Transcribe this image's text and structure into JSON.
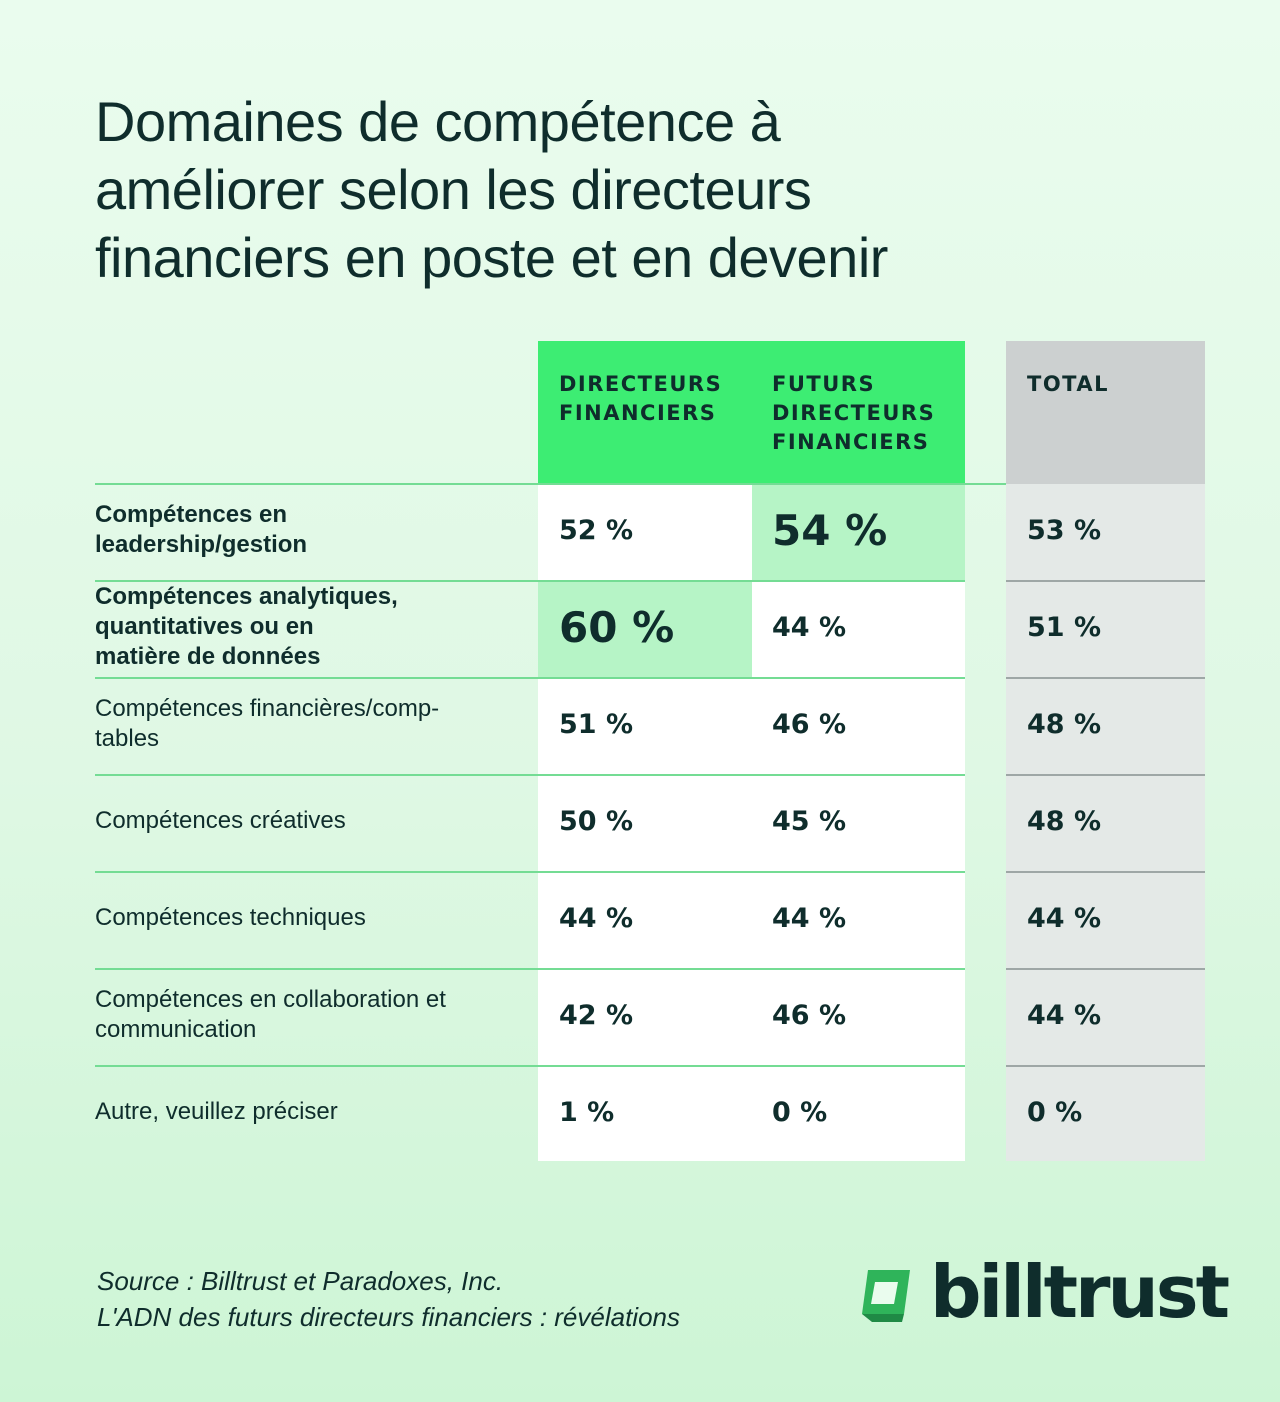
{
  "title_lines": [
    "Domaines de compétence à",
    "améliorer selon les directeurs",
    "financiers en poste et en devenir"
  ],
  "columns": [
    {
      "lines": [
        "DIRECTEURS",
        "FINANCIERS"
      ]
    },
    {
      "lines": [
        "FUTURS",
        "DIRECTEURS",
        "FINANCIERS"
      ]
    },
    {
      "lines": [
        "TOTAL"
      ]
    }
  ],
  "chart_data": {
    "type": "table",
    "title": "Domaines de compétence à améliorer selon les directeurs financiers en poste et en devenir",
    "columns": [
      "DIRECTEURS FINANCIERS",
      "FUTURS DIRECTEURS FINANCIERS",
      "TOTAL"
    ],
    "rows": [
      {
        "label_lines": [
          "Compétences en",
          "leadership/gestion"
        ],
        "bold": true,
        "values": [
          "52 %",
          "54 %",
          "53 %"
        ],
        "highlight": 1
      },
      {
        "label_lines": [
          "Compétences analytiques,",
          "quantitatives ou en",
          "matière de données"
        ],
        "bold": true,
        "values": [
          "60 %",
          "44 %",
          "51 %"
        ],
        "highlight": 0
      },
      {
        "label_lines": [
          "Compétences financières/comp-",
          "tables"
        ],
        "bold": false,
        "values": [
          "51 %",
          "46 %",
          "48 %"
        ],
        "highlight": null
      },
      {
        "label_lines": [
          "Compétences créatives"
        ],
        "bold": false,
        "values": [
          "50 %",
          "45 %",
          "48 %"
        ],
        "highlight": null
      },
      {
        "label_lines": [
          "Compétences techniques"
        ],
        "bold": false,
        "values": [
          "44 %",
          "44 %",
          "44 %"
        ],
        "highlight": null
      },
      {
        "label_lines": [
          "Compétences en collaboration et",
          "communication"
        ],
        "bold": false,
        "values": [
          "42 %",
          "46 %",
          "44 %"
        ],
        "highlight": null
      },
      {
        "label_lines": [
          "Autre, veuillez préciser"
        ],
        "bold": false,
        "values": [
          "1 %",
          "0 %",
          "0 %"
        ],
        "highlight": null
      }
    ]
  },
  "source_lines": [
    "Source : Billtrust et Paradoxes, Inc.",
    "L'ADN des futurs directeurs financiers : révélations"
  ],
  "logo": {
    "text": "billtrust",
    "icon": "billtrust-logo-icon",
    "icon_color": "#2fb45a"
  },
  "colors": {
    "header_green": "#3ded73",
    "highlight_green": "#b6f4c6",
    "total_header": "#ccd0d0",
    "total_body": "#e4e9e7",
    "text": "#0f2d2c"
  }
}
